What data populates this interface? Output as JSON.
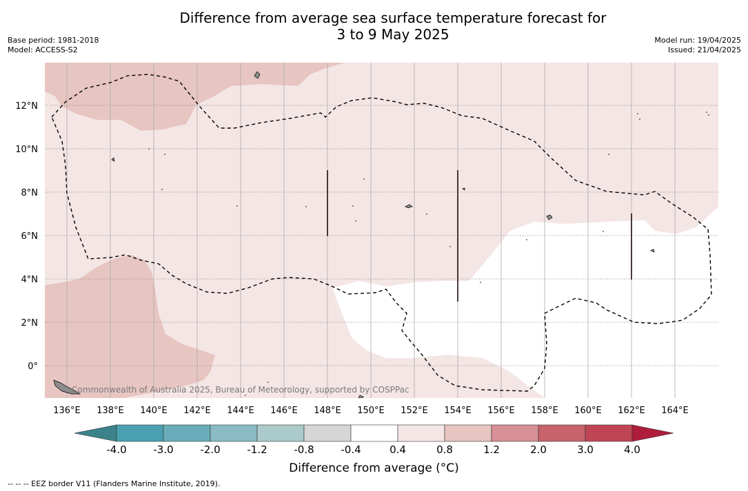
{
  "title": {
    "line1": "Difference from average sea surface temperature forecast for",
    "line2": "3 to 9 May 2025"
  },
  "meta": {
    "base_period": "Base period: 1981-2018",
    "model": "Model: ACCESS-S2",
    "model_run": "Model run: 19/04/2025",
    "issued": "Issued: 21/04/2025"
  },
  "map": {
    "copyright": "Commonwealth of Australia 2025, Bureau of Meteorology, supported by COSPPac",
    "lon_labels": [
      "136°E",
      "138°E",
      "140°E",
      "142°E",
      "144°E",
      "146°E",
      "148°E",
      "150°E",
      "152°E",
      "154°E",
      "156°E",
      "158°E",
      "160°E",
      "162°E",
      "164°E"
    ],
    "lat_labels": [
      "12°N",
      "10°N",
      "8°N",
      "6°N",
      "4°N",
      "2°N",
      "0°"
    ],
    "colors": {
      "land": "#8c8c8c",
      "anomaly_0_4_to_0_8": "#f4e6e5",
      "anomaly_0_8_to_1_2": "#e7c5c1",
      "anomaly_minus_0_4_to_0_4": "#ffffff"
    }
  },
  "colorbar": {
    "title": "Difference from average (°C)",
    "tick_labels": [
      "-4.0",
      "-3.0",
      "-2.0",
      "-1.2",
      "-0.8",
      "-0.4",
      "0.4",
      "0.8",
      "1.2",
      "2.0",
      "3.0",
      "4.0"
    ],
    "colors": [
      "#3c828b",
      "#4aa0b0",
      "#6aacb9",
      "#8abac3",
      "#abcaca",
      "#d6d6d6",
      "#ffffff",
      "#f4e6e5",
      "#e7c5c1",
      "#d69096",
      "#c7636b",
      "#bf4555",
      "#ae1d3b"
    ]
  },
  "footnote": "--  --  -- EEZ border V11 (Flanders Marine Institute, 2019)."
}
